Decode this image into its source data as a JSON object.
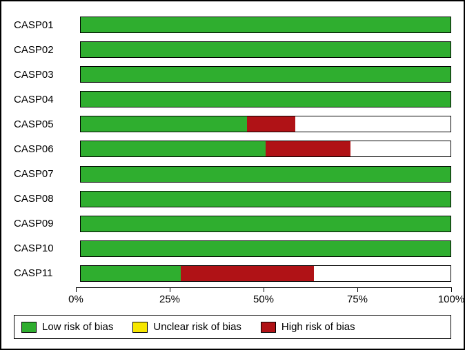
{
  "chart": {
    "type": "stacked-bar-horizontal",
    "background_color": "#ffffff",
    "bar_border_color": "#000000",
    "frame_border_color": "#000000",
    "label_fontsize": 15,
    "tick_fontsize": 15,
    "categories": [
      "CASP01",
      "CASP02",
      "CASP03",
      "CASP04",
      "CASP05",
      "CASP06",
      "CASP07",
      "CASP08",
      "CASP09",
      "CASP10",
      "CASP11"
    ],
    "series_order": [
      "low",
      "unclear",
      "high"
    ],
    "series": {
      "low": {
        "label": "Low risk of bias",
        "color": "#2fae2f"
      },
      "unclear": {
        "label": "Unclear risk of bias",
        "color": "#f6e600"
      },
      "high": {
        "label": "High risk of bias",
        "color": "#b01216"
      }
    },
    "xaxis": {
      "min": 0,
      "max": 100,
      "ticks": [
        0,
        25,
        50,
        75,
        100
      ],
      "tick_labels": [
        "0%",
        "25%",
        "50%",
        "75%",
        "100%"
      ],
      "axis_color": "#000000"
    },
    "data": {
      "CASP01": {
        "low": 100,
        "unclear": 0,
        "high": 0
      },
      "CASP02": {
        "low": 100,
        "unclear": 0,
        "high": 0
      },
      "CASP03": {
        "low": 100,
        "unclear": 0,
        "high": 0
      },
      "CASP04": {
        "low": 100,
        "unclear": 0,
        "high": 0
      },
      "CASP05": {
        "low": 45,
        "unclear": 0,
        "high": 13
      },
      "CASP06": {
        "low": 50,
        "unclear": 0,
        "high": 23
      },
      "CASP07": {
        "low": 100,
        "unclear": 0,
        "high": 0
      },
      "CASP08": {
        "low": 100,
        "unclear": 0,
        "high": 0
      },
      "CASP09": {
        "low": 100,
        "unclear": 0,
        "high": 0
      },
      "CASP10": {
        "low": 100,
        "unclear": 0,
        "high": 0
      },
      "CASP11": {
        "low": 27,
        "unclear": 0,
        "high": 36
      }
    }
  },
  "legend_items": [
    {
      "key": "low",
      "label": "Low risk of bias"
    },
    {
      "key": "unclear",
      "label": "Unclear risk of bias"
    },
    {
      "key": "high",
      "label": "High risk of bias"
    }
  ]
}
